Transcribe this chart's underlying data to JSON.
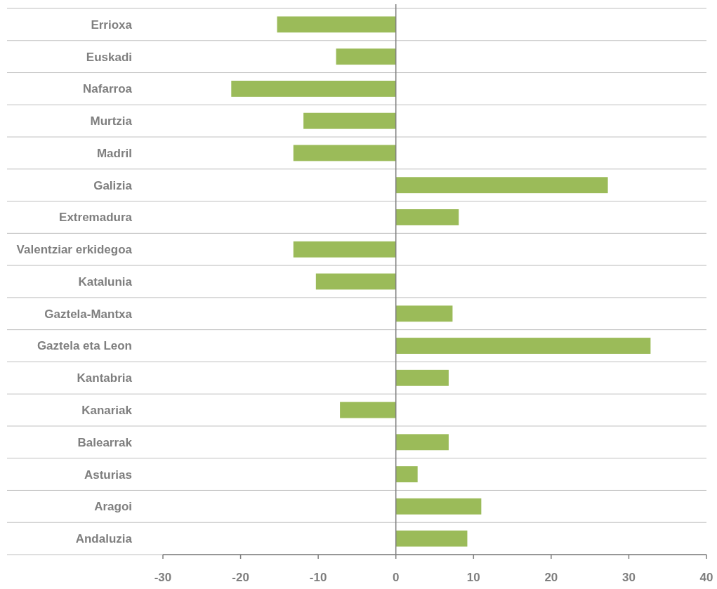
{
  "chart_data": {
    "type": "bar",
    "orientation": "horizontal",
    "categories": [
      "Errioxa",
      "Euskadi",
      "Nafarroa",
      "Murtzia",
      "Madril",
      "Galizia",
      "Extremadura",
      "Valentziar erkidegoa",
      "Katalunia",
      "Gaztela-Mantxa",
      "Gaztela eta Leon",
      "Kantabria",
      "Kanariak",
      "Balearrak",
      "Asturias",
      "Aragoi",
      "Andaluzia"
    ],
    "values": [
      -15.3,
      -7.7,
      -21.2,
      -11.9,
      -13.2,
      27.3,
      8.1,
      -13.2,
      -10.3,
      7.3,
      32.8,
      6.8,
      -7.2,
      6.8,
      2.8,
      11.0,
      9.2
    ],
    "color": "#9bbb59",
    "xlim": [
      -30,
      40
    ],
    "xticks": [
      -30,
      -20,
      -10,
      0,
      10,
      20,
      30,
      40
    ],
    "grid": "y"
  }
}
